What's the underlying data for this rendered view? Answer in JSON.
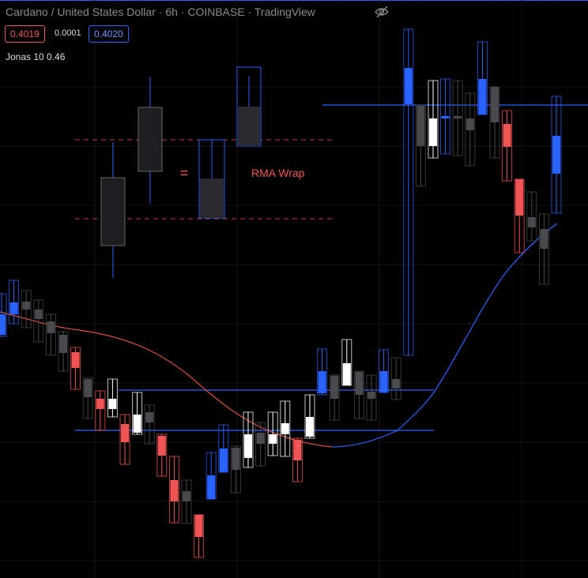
{
  "header": {
    "symbol": "Cardano / United States Dollar · 6h · COINBASE · TradingView",
    "bid": "0.4019",
    "spread": "0.0001",
    "ask": "0.4020",
    "indicator": "Jonas 10 0.46"
  },
  "annotations": {
    "equals": "=",
    "label": "RMA Wrap"
  },
  "chart_data": {
    "type": "candlestick",
    "ylim": [
      0.3459,
      0.4191
    ],
    "candles": [
      {
        "open": 0.3767,
        "high": 0.3819,
        "low": 0.3765,
        "close": 0.3793,
        "color": "#2962ff"
      },
      {
        "open": 0.3793,
        "high": 0.3836,
        "low": 0.3781,
        "close": 0.3808,
        "color": "#2962ff"
      },
      {
        "open": 0.3809,
        "high": 0.3823,
        "low": 0.3776,
        "close": 0.3799,
        "color": "#4a4a4e"
      },
      {
        "open": 0.3799,
        "high": 0.3811,
        "low": 0.3758,
        "close": 0.3787,
        "color": "#4a4a4e"
      },
      {
        "open": 0.3784,
        "high": 0.3793,
        "low": 0.3741,
        "close": 0.3769,
        "color": "#4a4a4e"
      },
      {
        "open": 0.3767,
        "high": 0.3771,
        "low": 0.3721,
        "close": 0.3744,
        "color": "#4a4a4e"
      },
      {
        "open": 0.3745,
        "high": 0.3751,
        "low": 0.3698,
        "close": 0.3725,
        "color": "#f05454"
      },
      {
        "open": 0.3711,
        "high": 0.3713,
        "low": 0.3661,
        "close": 0.3688,
        "color": "#4a4a4e"
      },
      {
        "open": 0.3686,
        "high": 0.3696,
        "low": 0.3646,
        "close": 0.3673,
        "color": "#f05454"
      },
      {
        "open": 0.3673,
        "high": 0.3711,
        "low": 0.3663,
        "close": 0.3686,
        "color": "#ffffff"
      },
      {
        "open": 0.3654,
        "high": 0.3666,
        "low": 0.3603,
        "close": 0.3631,
        "color": "#f05454"
      },
      {
        "open": 0.3643,
        "high": 0.3694,
        "low": 0.3641,
        "close": 0.3666,
        "color": "#ffffff"
      },
      {
        "open": 0.3669,
        "high": 0.3678,
        "low": 0.3629,
        "close": 0.3656,
        "color": "#4a4a4e"
      },
      {
        "open": 0.3639,
        "high": 0.3641,
        "low": 0.3588,
        "close": 0.3614,
        "color": "#f05454"
      },
      {
        "open": 0.3583,
        "high": 0.3613,
        "low": 0.3529,
        "close": 0.3556,
        "color": "#f05454"
      },
      {
        "open": 0.3569,
        "high": 0.3583,
        "low": 0.3528,
        "close": 0.3556,
        "color": "#4a4a4e"
      },
      {
        "open": 0.3539,
        "high": 0.3539,
        "low": 0.3485,
        "close": 0.3511,
        "color": "#f05454"
      },
      {
        "open": 0.3559,
        "high": 0.3618,
        "low": 0.3559,
        "close": 0.3589,
        "color": "#2962ff"
      },
      {
        "open": 0.3593,
        "high": 0.3653,
        "low": 0.3593,
        "close": 0.3623,
        "color": "#2962ff"
      },
      {
        "open": 0.3624,
        "high": 0.3626,
        "low": 0.3567,
        "close": 0.3596,
        "color": "#4a4a4e"
      },
      {
        "open": 0.3611,
        "high": 0.3669,
        "low": 0.3599,
        "close": 0.3641,
        "color": "#ffffff"
      },
      {
        "open": 0.3643,
        "high": 0.3656,
        "low": 0.3601,
        "close": 0.3629,
        "color": "#4a4a4e"
      },
      {
        "open": 0.3629,
        "high": 0.3669,
        "low": 0.3614,
        "close": 0.3641,
        "color": "#ffffff"
      },
      {
        "open": 0.3641,
        "high": 0.3683,
        "low": 0.3613,
        "close": 0.3655,
        "color": "#ffffff"
      },
      {
        "open": 0.3634,
        "high": 0.3636,
        "low": 0.3581,
        "close": 0.3608,
        "color": "#f05454"
      },
      {
        "open": 0.3638,
        "high": 0.3691,
        "low": 0.3636,
        "close": 0.3663,
        "color": "#ffffff"
      },
      {
        "open": 0.3693,
        "high": 0.3749,
        "low": 0.3691,
        "close": 0.3721,
        "color": "#2962ff"
      },
      {
        "open": 0.3715,
        "high": 0.3716,
        "low": 0.3659,
        "close": 0.3686,
        "color": "#4a4a4e"
      },
      {
        "open": 0.3703,
        "high": 0.3761,
        "low": 0.3703,
        "close": 0.3731,
        "color": "#ffffff"
      },
      {
        "open": 0.372,
        "high": 0.3721,
        "low": 0.3661,
        "close": 0.3691,
        "color": "#4a4a4e"
      },
      {
        "open": 0.3695,
        "high": 0.3716,
        "low": 0.3659,
        "close": 0.3686,
        "color": "#4a4a4e"
      },
      {
        "open": 0.3694,
        "high": 0.3748,
        "low": 0.3694,
        "close": 0.3721,
        "color": "#2962ff"
      },
      {
        "open": 0.3711,
        "high": 0.3738,
        "low": 0.3685,
        "close": 0.3699,
        "color": "#4a4a4e"
      },
      {
        "open": 0.4059,
        "high": 0.4154,
        "low": 0.3741,
        "close": 0.4105,
        "color": "#2962ff"
      },
      {
        "open": 0.4057,
        "high": 0.4058,
        "low": 0.3955,
        "close": 0.4006,
        "color": "#4a4a4e"
      },
      {
        "open": 0.4006,
        "high": 0.4089,
        "low": 0.3991,
        "close": 0.4041,
        "color": "#ffffff"
      },
      {
        "open": 0.4041,
        "high": 0.4091,
        "low": 0.3996,
        "close": 0.4044,
        "color": "#2962ff"
      },
      {
        "open": 0.4044,
        "high": 0.4089,
        "low": 0.3994,
        "close": 0.4041,
        "color": "#4a4a4e"
      },
      {
        "open": 0.4041,
        "high": 0.4073,
        "low": 0.3981,
        "close": 0.4026,
        "color": "#4a4a4e"
      },
      {
        "open": 0.4046,
        "high": 0.4138,
        "low": 0.4046,
        "close": 0.4091,
        "color": "#2962ff"
      },
      {
        "open": 0.4081,
        "high": 0.4081,
        "low": 0.3991,
        "close": 0.4036,
        "color": "#4a4a4e"
      },
      {
        "open": 0.4034,
        "high": 0.4051,
        "low": 0.3962,
        "close": 0.4005,
        "color": "#f05454"
      },
      {
        "open": 0.3964,
        "high": 0.3964,
        "low": 0.3871,
        "close": 0.3918,
        "color": "#f05454"
      },
      {
        "open": 0.3916,
        "high": 0.3948,
        "low": 0.3886,
        "close": 0.3903,
        "color": "#4a4a4e"
      },
      {
        "open": 0.3901,
        "high": 0.392,
        "low": 0.3831,
        "close": 0.3876,
        "color": "#4a4a4e"
      },
      {
        "open": 0.3971,
        "high": 0.4069,
        "low": 0.3921,
        "close": 0.4019,
        "color": "#2962ff"
      }
    ]
  }
}
